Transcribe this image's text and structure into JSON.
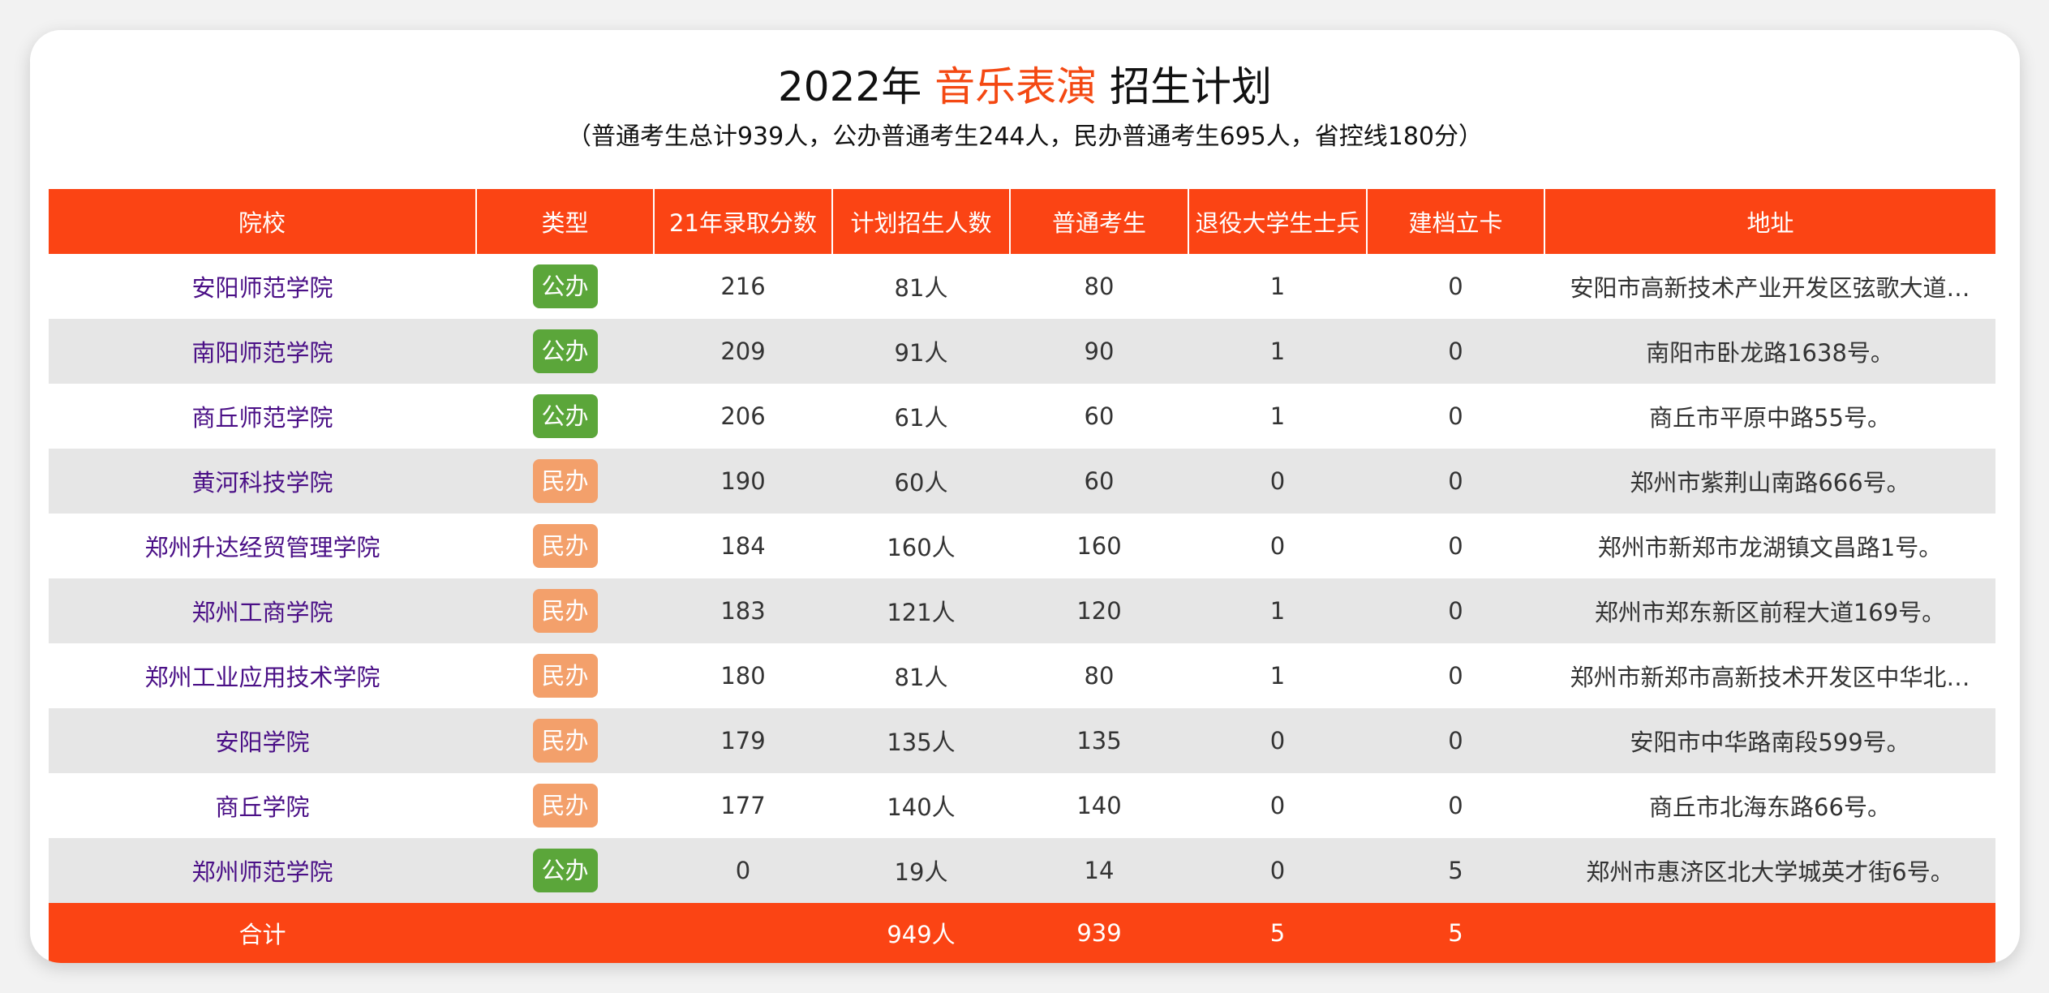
{
  "title": {
    "prefix": "2022年",
    "major": "音乐表演",
    "suffix": "招生计划"
  },
  "subtitle": "（普通考生总计939人，公办普通考生244人，民办普通考生695人，省控线180分）",
  "colors": {
    "accent": "#f44812",
    "header_bg": "#fb4414",
    "public_badge": "#5ba63a",
    "private_badge": "#f3a06b",
    "school_link": "#4a0f86",
    "stripe": "#e6e6e6"
  },
  "table": {
    "headers": [
      "院校",
      "类型",
      "21年录取分数",
      "计划招生人数",
      "普通考生",
      "退役大学生士兵",
      "建档立卡",
      "地址"
    ],
    "rows": [
      {
        "school": "安阳师范学院",
        "type": "公办",
        "type_kind": "public",
        "score": "216",
        "plan": "81人",
        "regular": "80",
        "veterans": "1",
        "poverty": "0",
        "address": "安阳市高新技术产业开发区弦歌大道…"
      },
      {
        "school": "南阳师范学院",
        "type": "公办",
        "type_kind": "public",
        "score": "209",
        "plan": "91人",
        "regular": "90",
        "veterans": "1",
        "poverty": "0",
        "address": "南阳市卧龙路1638号。"
      },
      {
        "school": "商丘师范学院",
        "type": "公办",
        "type_kind": "public",
        "score": "206",
        "plan": "61人",
        "regular": "60",
        "veterans": "1",
        "poverty": "0",
        "address": "商丘市平原中路55号。"
      },
      {
        "school": "黄河科技学院",
        "type": "民办",
        "type_kind": "private",
        "score": "190",
        "plan": "60人",
        "regular": "60",
        "veterans": "0",
        "poverty": "0",
        "address": "郑州市紫荆山南路666号。"
      },
      {
        "school": "郑州升达经贸管理学院",
        "type": "民办",
        "type_kind": "private",
        "score": "184",
        "plan": "160人",
        "regular": "160",
        "veterans": "0",
        "poverty": "0",
        "address": "郑州市新郑市龙湖镇文昌路1号。"
      },
      {
        "school": "郑州工商学院",
        "type": "民办",
        "type_kind": "private",
        "score": "183",
        "plan": "121人",
        "regular": "120",
        "veterans": "1",
        "poverty": "0",
        "address": "郑州市郑东新区前程大道169号。"
      },
      {
        "school": "郑州工业应用技术学院",
        "type": "民办",
        "type_kind": "private",
        "score": "180",
        "plan": "81人",
        "regular": "80",
        "veterans": "1",
        "poverty": "0",
        "address": "郑州市新郑市高新技术开发区中华北…"
      },
      {
        "school": "安阳学院",
        "type": "民办",
        "type_kind": "private",
        "score": "179",
        "plan": "135人",
        "regular": "135",
        "veterans": "0",
        "poverty": "0",
        "address": "安阳市中华路南段599号。"
      },
      {
        "school": "商丘学院",
        "type": "民办",
        "type_kind": "private",
        "score": "177",
        "plan": "140人",
        "regular": "140",
        "veterans": "0",
        "poverty": "0",
        "address": "商丘市北海东路66号。"
      },
      {
        "school": "郑州师范学院",
        "type": "公办",
        "type_kind": "public",
        "score": "0",
        "plan": "19人",
        "regular": "14",
        "veterans": "0",
        "poverty": "5",
        "address": "郑州市惠济区北大学城英才街6号。"
      }
    ],
    "footer": {
      "label": "合计",
      "type": "",
      "score": "",
      "plan": "949人",
      "regular": "939",
      "veterans": "5",
      "poverty": "5",
      "address": ""
    }
  }
}
